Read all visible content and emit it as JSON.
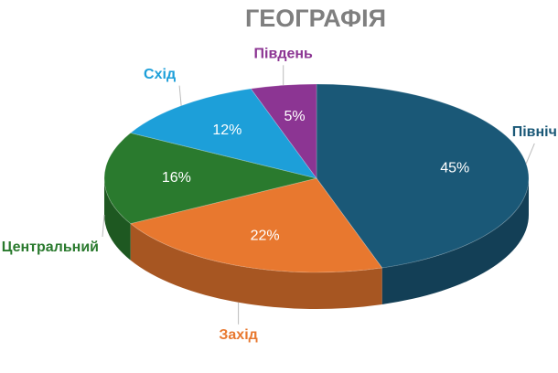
{
  "chart_data": {
    "type": "pie",
    "title": "ГЕОГРАФІЯ",
    "categories": [
      "Північ",
      "Захід",
      "Центральний",
      "Схід",
      "Південь"
    ],
    "values": [
      45,
      22,
      16,
      12,
      5
    ],
    "value_labels": [
      "45%",
      "22%",
      "16%",
      "12%",
      "5%"
    ],
    "colors": [
      "#1a5877",
      "#e8782f",
      "#2a7a2e",
      "#1d9fd9",
      "#8c3593"
    ]
  }
}
